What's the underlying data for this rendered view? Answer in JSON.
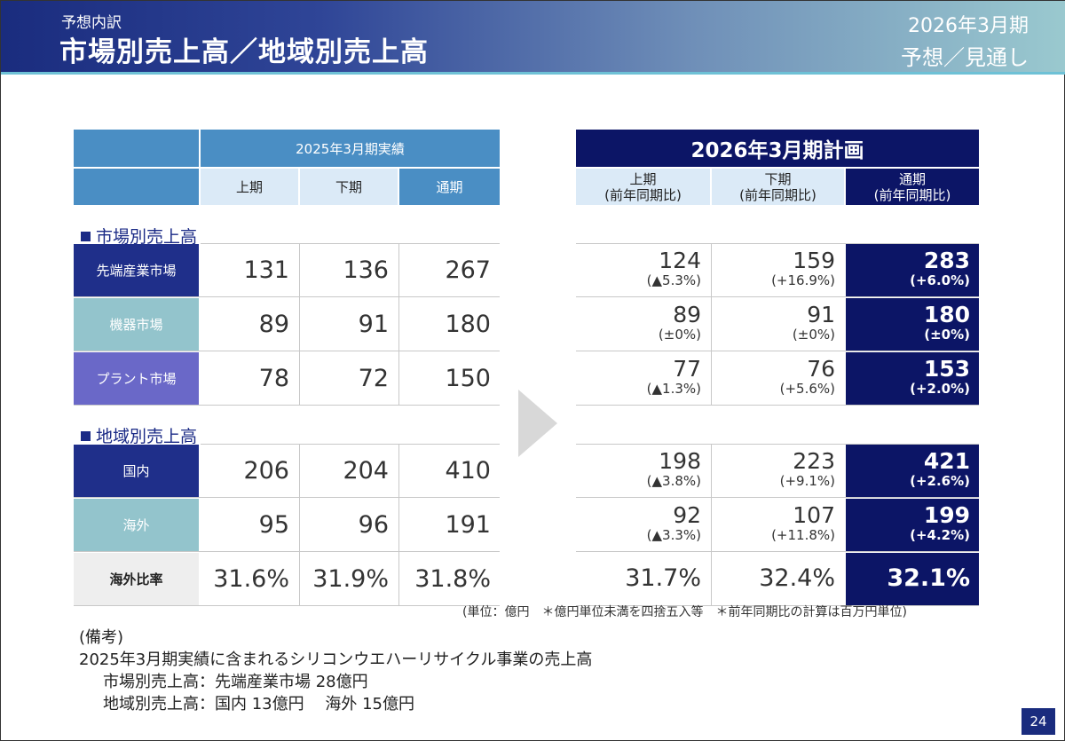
{
  "header": {
    "subtitle": "予想内訳",
    "title": "市場別売上高／地域別売上高",
    "period": "2026年3月期",
    "kind": "予想／見通し"
  },
  "actual": {
    "caption": "2025年3月期実績",
    "columns": [
      "上期",
      "下期",
      "通期"
    ]
  },
  "plan": {
    "caption": "2026年3月期計画",
    "columns": [
      {
        "label": "上期",
        "sub": "(前年同期比)"
      },
      {
        "label": "下期",
        "sub": "(前年同期比)"
      },
      {
        "label": "通期",
        "sub": "(前年同期比)"
      }
    ]
  },
  "sections": {
    "market": "市場別売上高",
    "region": "地域別売上高"
  },
  "rows": [
    {
      "label": "先端産業市場",
      "actual": [
        "131",
        "136",
        "267"
      ],
      "plan": [
        [
          "124",
          "(▲5.3%)"
        ],
        [
          "159",
          "(+16.9%)"
        ],
        [
          "283",
          "(+6.0%)"
        ]
      ]
    },
    {
      "label": "機器市場",
      "actual": [
        "89",
        "91",
        "180"
      ],
      "plan": [
        [
          "89",
          "(±0%)"
        ],
        [
          "91",
          "(±0%)"
        ],
        [
          "180",
          "(±0%)"
        ]
      ]
    },
    {
      "label": "プラント市場",
      "actual": [
        "78",
        "72",
        "150"
      ],
      "plan": [
        [
          "77",
          "(▲1.3%)"
        ],
        [
          "76",
          "(+5.6%)"
        ],
        [
          "153",
          "(+2.0%)"
        ]
      ]
    },
    {
      "label": "国内",
      "actual": [
        "206",
        "204",
        "410"
      ],
      "plan": [
        [
          "198",
          "(▲3.8%)"
        ],
        [
          "223",
          "(+9.1%)"
        ],
        [
          "421",
          "(+2.6%)"
        ]
      ]
    },
    {
      "label": "海外",
      "actual": [
        "95",
        "96",
        "191"
      ],
      "plan": [
        [
          "92",
          "(▲3.3%)"
        ],
        [
          "107",
          "(+11.8%)"
        ],
        [
          "199",
          "(+4.2%)"
        ]
      ]
    },
    {
      "label": "海外比率",
      "actual": [
        "31.6%",
        "31.9%",
        "31.8%"
      ],
      "plan": [
        [
          "31.7%",
          ""
        ],
        [
          "32.4%",
          ""
        ],
        [
          "32.1%",
          ""
        ]
      ]
    }
  ],
  "colors": {
    "row_label_1": "#1f2f8a",
    "row_label_2": "#93c4cc",
    "row_label_3": "#6a68c8",
    "row_label_4": "#1f2f8a",
    "row_label_5": "#93c4cc",
    "row_label_6": "#eeeeee",
    "navy": "#0c1566",
    "header_blue": "#4a8ec4"
  },
  "unit_note": "(単位：億円　＊億円単位未満を四捨五入等　＊前年同期比の計算は百万円単位)",
  "remarks": {
    "heading": "(備考)",
    "line1": "2025年3月期実績に含まれるシリコンウエハーリサイクル事業の売上高",
    "line2": "市場別売上高：先端産業市場 28億円",
    "line3": "地域別売上高：国内 13億円　 海外 15億円"
  },
  "page_number": "24"
}
